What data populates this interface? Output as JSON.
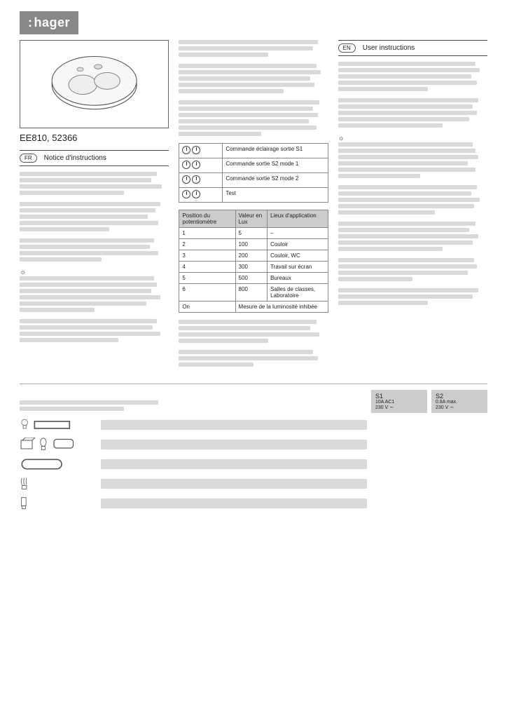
{
  "brand": "hager",
  "product_code": "EE810, 52366",
  "lang_fr_code": "FR",
  "lang_fr_title": "Notice d'instructions",
  "lang_en_code": "EN",
  "lang_en_title": "User instructions",
  "mode_table": {
    "rows": [
      {
        "label": "Commande éclairage sortie S1"
      },
      {
        "label": "Commande sortie S2 mode 1"
      },
      {
        "label": "Commande sortie S2 mode 2"
      },
      {
        "label": "Test"
      }
    ]
  },
  "lux_table": {
    "headers": [
      "Position du potentiomètre",
      "Valeur en Lux",
      "Lieux d'application"
    ],
    "rows": [
      [
        "1",
        "5",
        "–"
      ],
      [
        "2",
        "100",
        "Couloir"
      ],
      [
        "3",
        "200",
        "Couloir, WC"
      ],
      [
        "4",
        "300",
        "Travail sur écran"
      ],
      [
        "5",
        "500",
        "Bureaux"
      ],
      [
        "6",
        "800",
        "Salles de classes, Laboratoire"
      ],
      [
        "On",
        "Mesure de la luminosité inhibée",
        ""
      ]
    ]
  },
  "spec_header": {
    "s1": {
      "title": "S1",
      "sub1": "10A AC1",
      "sub2": "230 V ∼"
    },
    "s2": {
      "title": "S2",
      "sub1": "0.8A max.",
      "sub2": "230 V ∼"
    }
  },
  "colors": {
    "bar": "#d9d9d9",
    "header_bg": "#888888",
    "table_header": "#cccccc",
    "border": "#666666"
  }
}
